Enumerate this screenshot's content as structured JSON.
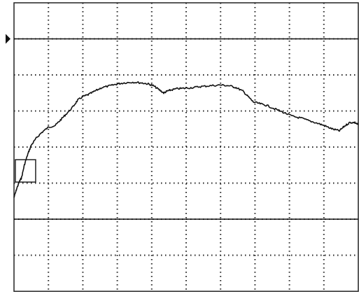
{
  "chart_data": {
    "type": "line",
    "title": "",
    "xlabel": "",
    "ylabel": "",
    "grid": true,
    "grid_divisions": {
      "x": 10,
      "y": 8
    },
    "xlim": [
      0,
      10
    ],
    "ylim": [
      -4,
      4
    ],
    "reference_lines": [
      3,
      -2
    ],
    "trigger_marker": "box",
    "channel_marker": "ch1-arrow",
    "colors": {
      "trace": "#111111",
      "grid": "#222222",
      "background": "#ffffff"
    },
    "series": [
      {
        "name": "",
        "x": [
          0.0,
          0.08,
          0.16,
          0.22,
          0.3,
          0.4,
          0.5,
          0.65,
          0.8,
          1.0,
          1.2,
          1.35,
          1.5,
          1.7,
          1.85,
          2.0,
          2.15,
          2.35,
          2.55,
          2.8,
          3.0,
          3.2,
          3.45,
          3.7,
          3.9,
          4.05,
          4.2,
          4.35,
          4.45,
          4.55,
          4.75,
          4.95,
          5.2,
          5.45,
          5.7,
          6.0,
          6.25,
          6.45,
          6.65,
          6.8,
          6.95,
          7.15,
          7.35,
          7.6,
          7.85,
          8.1,
          8.35,
          8.6,
          8.85,
          9.05,
          9.25,
          9.45,
          9.6,
          9.75,
          9.9,
          10.0
        ],
        "y": [
          -1.4,
          -1.15,
          -0.95,
          -0.85,
          -0.5,
          -0.2,
          0.05,
          0.25,
          0.4,
          0.55,
          0.6,
          0.75,
          0.9,
          1.1,
          1.3,
          1.4,
          1.45,
          1.55,
          1.65,
          1.7,
          1.75,
          1.78,
          1.8,
          1.78,
          1.75,
          1.7,
          1.6,
          1.5,
          1.55,
          1.58,
          1.62,
          1.63,
          1.65,
          1.68,
          1.7,
          1.72,
          1.7,
          1.65,
          1.55,
          1.4,
          1.25,
          1.2,
          1.15,
          1.05,
          0.95,
          0.85,
          0.8,
          0.72,
          0.65,
          0.58,
          0.5,
          0.45,
          0.58,
          0.68,
          0.68,
          0.62
        ]
      }
    ]
  }
}
